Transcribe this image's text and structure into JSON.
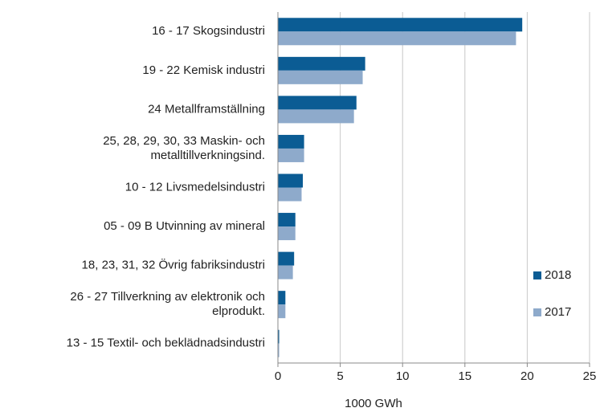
{
  "chart_data": {
    "type": "bar",
    "orientation": "horizontal",
    "categories": [
      "16 - 17 Skogsindustri",
      "19 - 22 Kemisk industri",
      "24 Metallframställning",
      "25, 28, 29, 30, 33 Maskin- och\nmetalltillverkningsind.",
      "10 - 12 Livsmedelsindustri",
      "05 - 09 B Utvinning av mineral",
      "18, 23, 31, 32 Övrig fabriksindustri",
      "26 - 27 Tillverkning av elektronik och\nelprodukt.",
      "13 - 15 Textil- och beklädnadsindustri"
    ],
    "series": [
      {
        "name": "2018",
        "color": "#0b5c94",
        "values": [
          19.6,
          7.0,
          6.3,
          2.1,
          2.0,
          1.4,
          1.3,
          0.6,
          0.1
        ]
      },
      {
        "name": "2017",
        "color": "#8eaacb",
        "values": [
          19.1,
          6.8,
          6.1,
          2.1,
          1.9,
          1.4,
          1.2,
          0.6,
          0.1
        ]
      }
    ],
    "xlabel": "1000 GWh",
    "xlim": [
      0,
      25
    ],
    "xticks": [
      0,
      5,
      10,
      15,
      20,
      25
    ],
    "grid": true
  }
}
